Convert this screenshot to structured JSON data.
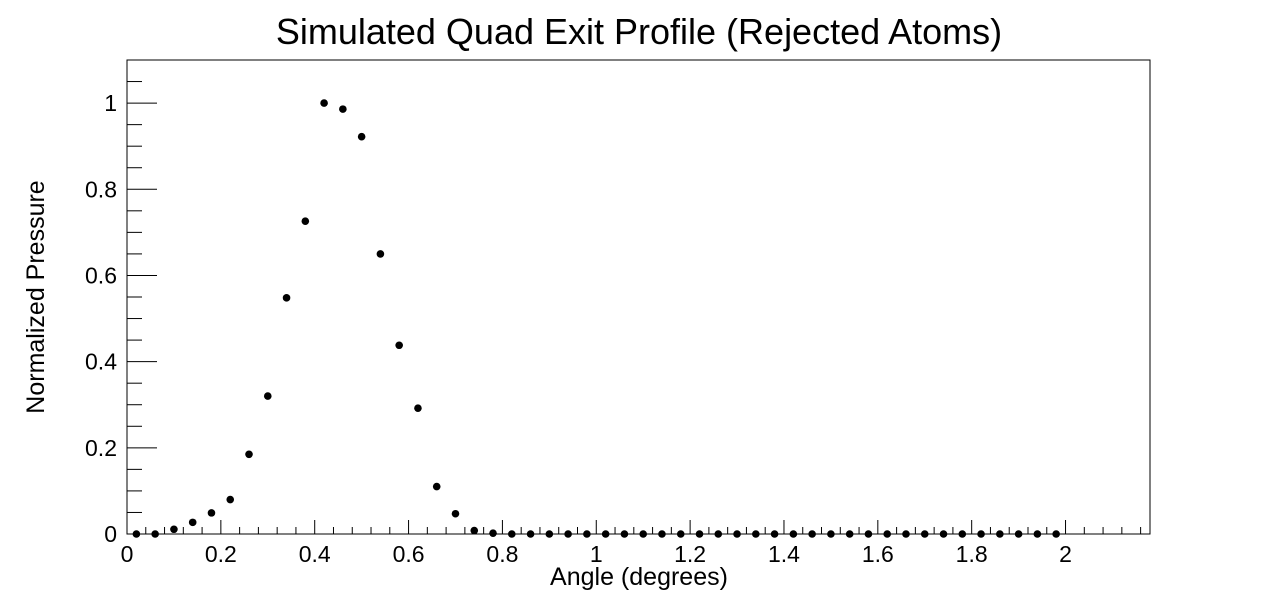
{
  "chart_data": {
    "type": "scatter",
    "title": "Simulated Quad Exit Profile (Rejected Atoms)",
    "xlabel": "Angle (degrees)",
    "ylabel": "Normalized Pressure",
    "xlim": [
      0,
      2.18
    ],
    "ylim": [
      0,
      1.1
    ],
    "grid": false,
    "legend": "none",
    "x_ticks": [
      0,
      0.2,
      0.4,
      0.6,
      0.8,
      1,
      1.2,
      1.4,
      1.6,
      1.8,
      2
    ],
    "x_tick_labels": [
      "0",
      "0.2",
      "0.4",
      "0.6",
      "0.8",
      "1",
      "1.2",
      "1.4",
      "1.6",
      "1.8",
      "2"
    ],
    "y_ticks": [
      0,
      0.2,
      0.4,
      0.6,
      0.8,
      1
    ],
    "y_tick_labels": [
      "0",
      "0.2",
      "0.4",
      "0.6",
      "0.8",
      "1"
    ],
    "marker_color": "#000000",
    "x": [
      0.02,
      0.06,
      0.1,
      0.14,
      0.18,
      0.22,
      0.26,
      0.3,
      0.34,
      0.38,
      0.42,
      0.46,
      0.5,
      0.54,
      0.58,
      0.62,
      0.66,
      0.7,
      0.74,
      0.78,
      0.82,
      0.86,
      0.9,
      0.94,
      0.98,
      1.02,
      1.06,
      1.1,
      1.14,
      1.18,
      1.22,
      1.26,
      1.3,
      1.34,
      1.38,
      1.42,
      1.46,
      1.5,
      1.54,
      1.58,
      1.62,
      1.66,
      1.7,
      1.74,
      1.78,
      1.82,
      1.86,
      1.9,
      1.94,
      1.98
    ],
    "y": [
      0.0,
      0.0,
      0.011,
      0.027,
      0.049,
      0.08,
      0.185,
      0.32,
      0.548,
      0.726,
      1.0,
      0.986,
      0.922,
      0.65,
      0.438,
      0.292,
      0.11,
      0.047,
      0.008,
      0.002,
      0.0,
      0.0,
      0.0,
      0.0,
      0.0,
      0.0,
      0.0,
      0.0,
      0.0,
      0.0,
      0.0,
      0.0,
      0.0,
      0.0,
      0.0,
      0.0,
      0.0,
      0.0,
      0.0,
      0.0,
      0.0,
      0.0,
      0.0,
      0.0,
      0.0,
      0.0,
      0.0,
      0.0,
      0.0,
      0.0
    ]
  }
}
